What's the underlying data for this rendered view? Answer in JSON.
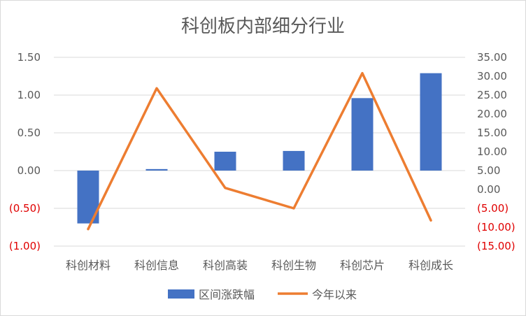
{
  "chart_data": {
    "type": "bar+line",
    "title": "科创板内部细分行业",
    "categories": [
      "科创材料",
      "科创信息",
      "科创高装",
      "科创生物",
      "科创芯片",
      "科创成长"
    ],
    "series": [
      {
        "name": "区间涨跌幅",
        "type": "bar",
        "axis": "left",
        "color": "#4472C4",
        "values": [
          -0.7,
          0.02,
          0.25,
          0.26,
          0.96,
          1.29
        ]
      },
      {
        "name": "今年以来",
        "type": "line",
        "axis": "right",
        "color": "#ED7D31",
        "values": [
          -10.5,
          26.8,
          0.4,
          -5.0,
          30.8,
          -8.2
        ]
      }
    ],
    "y_left": {
      "ylim": [
        -1.0,
        1.5
      ],
      "ticks": [
        1.5,
        1.0,
        0.5,
        0.0,
        -0.5,
        -1.0
      ],
      "tick_labels": [
        "1.50",
        "1.00",
        "0.50",
        "0.00",
        "(0.50)",
        "(1.00)"
      ]
    },
    "y_right": {
      "ylim": [
        -15,
        35
      ],
      "ticks": [
        35,
        30,
        25,
        20,
        15,
        10,
        5,
        0,
        -5,
        -10,
        -15
      ],
      "tick_labels": [
        "35.00",
        "30.00",
        "25.00",
        "20.00",
        "15.00",
        "10.00",
        "5.00",
        "0.00",
        "(5.00)",
        "(10.00)",
        "(15.00)"
      ]
    },
    "negative_tick_color": "#E00000",
    "grid": true,
    "legend": "bottom"
  }
}
